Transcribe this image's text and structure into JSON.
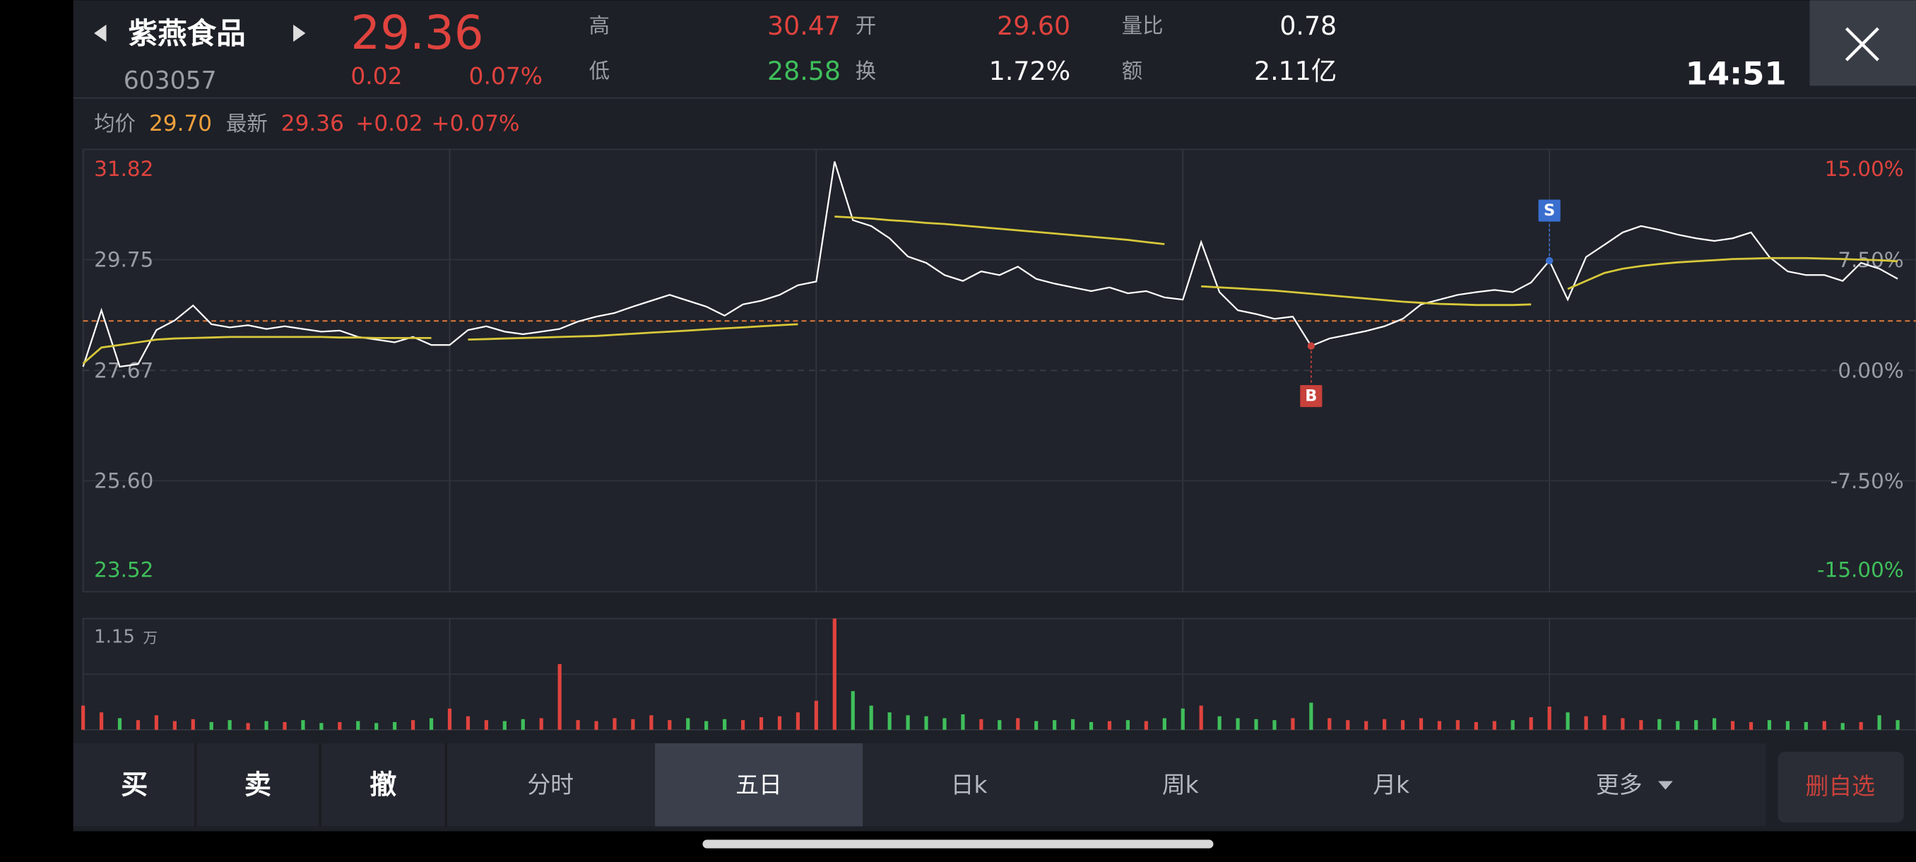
{
  "header": {
    "name": "紫燕食品",
    "code": "603057",
    "price": "29.36",
    "change": "0.02",
    "change_pct": "0.07%",
    "time": "14:51",
    "stats": [
      {
        "label": "高",
        "value": "30.47",
        "color": "#e0433e"
      },
      {
        "label": "开",
        "value": "29.60",
        "color": "#e0433e"
      },
      {
        "label": "量比",
        "value": "0.78",
        "color": "#ffffff"
      },
      {
        "label": "低",
        "value": "28.58",
        "color": "#3fbf5b"
      },
      {
        "label": "换",
        "value": "1.72%",
        "color": "#ffffff"
      },
      {
        "label": "额",
        "value": "2.11亿",
        "color": "#ffffff"
      }
    ]
  },
  "summary": {
    "avg_label": "均价",
    "avg": "29.70",
    "latest_label": "最新",
    "latest": "29.36",
    "change": "+0.02",
    "change_pct": "+0.07%"
  },
  "chart_data": {
    "type": "line",
    "x": [
      0,
      1,
      2,
      3,
      4,
      5,
      6,
      7,
      8,
      9,
      10,
      11,
      12,
      13,
      14,
      15,
      16,
      17,
      18,
      19,
      20,
      21,
      22,
      23,
      24,
      25,
      26,
      27,
      28,
      29,
      30,
      31,
      32,
      33,
      34,
      35,
      36,
      37,
      38,
      39,
      40,
      41,
      42,
      43,
      44,
      45,
      46,
      47,
      48,
      49,
      50,
      51,
      52,
      53,
      54,
      55,
      56,
      57,
      58,
      59,
      60,
      61,
      62,
      63,
      64,
      65,
      66,
      67,
      68,
      69,
      70,
      71,
      72,
      73,
      74,
      75,
      76,
      77,
      78,
      79,
      80,
      81,
      82,
      83,
      84,
      85,
      86,
      87,
      88,
      89,
      90,
      91,
      92,
      93,
      94,
      95,
      96,
      97,
      98,
      99
    ],
    "xlim": [
      0,
      100
    ],
    "day_separators": [
      20,
      40,
      60,
      80
    ],
    "series": [
      {
        "color": "#ffffff",
        "values": [
          27.74,
          28.8,
          27.74,
          27.79,
          28.43,
          28.61,
          28.89,
          28.54,
          28.48,
          28.52,
          28.45,
          28.5,
          28.45,
          28.4,
          28.42,
          28.3,
          28.25,
          28.2,
          28.3,
          28.15,
          28.15,
          28.43,
          28.5,
          28.4,
          28.35,
          28.4,
          28.45,
          28.59,
          28.68,
          28.75,
          28.87,
          28.98,
          29.09,
          28.98,
          28.87,
          28.7,
          28.91,
          28.98,
          29.09,
          29.27,
          29.34,
          31.59,
          30.49,
          30.38,
          30.15,
          29.81,
          29.69,
          29.46,
          29.35,
          29.53,
          29.46,
          29.62,
          29.39,
          29.3,
          29.23,
          29.16,
          29.23,
          29.12,
          29.16,
          29.04,
          29.0,
          30.08,
          29.14,
          28.8,
          28.73,
          28.64,
          28.68,
          28.13,
          28.27,
          28.34,
          28.41,
          28.5,
          28.64,
          28.91,
          29.0,
          29.09,
          29.14,
          29.18,
          29.14,
          29.32,
          29.73,
          29.0,
          29.8,
          30.03,
          30.26,
          30.38,
          30.31,
          30.22,
          30.15,
          30.1,
          30.15,
          30.26,
          29.8,
          29.53,
          29.46,
          29.46,
          29.35,
          29.69,
          29.58,
          29.39
        ]
      },
      {
        "color": "#d8c83a",
        "values": [
          27.8,
          28.1,
          28.15,
          28.2,
          28.25,
          28.27,
          28.28,
          28.29,
          28.3,
          28.3,
          28.3,
          28.3,
          28.3,
          28.3,
          28.29,
          28.29,
          28.28,
          28.28,
          28.28,
          28.28,
          null,
          28.25,
          28.26,
          28.27,
          28.28,
          28.29,
          28.3,
          28.31,
          28.32,
          28.34,
          28.36,
          28.38,
          28.4,
          28.42,
          28.44,
          28.46,
          28.48,
          28.5,
          28.52,
          28.54,
          null,
          30.56,
          30.54,
          30.52,
          30.49,
          30.47,
          30.44,
          30.42,
          30.39,
          30.36,
          30.33,
          30.3,
          30.27,
          30.24,
          30.21,
          30.18,
          30.15,
          30.12,
          30.08,
          30.04,
          null,
          29.25,
          29.23,
          29.21,
          29.19,
          29.17,
          29.14,
          29.11,
          29.08,
          29.05,
          29.02,
          28.99,
          28.96,
          28.94,
          28.92,
          28.91,
          28.9,
          28.9,
          28.9,
          28.91,
          null,
          29.2,
          29.35,
          29.5,
          29.58,
          29.63,
          29.67,
          29.7,
          29.72,
          29.74,
          29.76,
          29.77,
          29.78,
          29.78,
          29.78,
          29.77,
          29.76,
          29.75,
          29.74,
          29.72
        ]
      }
    ],
    "ylim": [
      23.52,
      31.82
    ],
    "yticks": [
      23.52,
      {
        "value": 25.6,
        "label": "25.60"
      },
      27.67,
      29.75,
      31.82
    ],
    "y2lim": [
      -15,
      15
    ],
    "y2ticks": [
      {
        "value": -15,
        "label": "-15.00%"
      },
      {
        "value": -7.5,
        "label": "-7.50%"
      },
      {
        "value": 0,
        "label": "0.00%"
      },
      {
        "value": 7.5,
        "label": "7.50%"
      },
      {
        "value": 15,
        "label": "15.00%"
      }
    ],
    "reference_line": {
      "value": 28.6,
      "color": "#e07a3a"
    },
    "markers": [
      {
        "label": "B",
        "x": 67,
        "value": 28.13,
        "color": "#c8413b"
      },
      {
        "label": "S",
        "x": 80,
        "value": 29.73,
        "color": "#3a6fd0"
      }
    ],
    "up_color": "#e0433e",
    "down_color": "#3fbf5b",
    "volume": {
      "ylim": [
        0,
        1.15
      ],
      "yticks": [
        1.15
      ],
      "unit": "万",
      "values": [
        0.25,
        0.18,
        0.12,
        0.1,
        0.15,
        0.09,
        0.11,
        0.08,
        0.1,
        0.07,
        0.09,
        0.08,
        0.1,
        0.07,
        0.08,
        0.09,
        0.07,
        0.08,
        0.1,
        0.12,
        0.22,
        0.14,
        0.1,
        0.09,
        0.11,
        0.12,
        0.68,
        0.1,
        0.09,
        0.12,
        0.11,
        0.15,
        0.1,
        0.12,
        0.09,
        0.11,
        0.1,
        0.13,
        0.14,
        0.18,
        0.3,
        1.15,
        0.4,
        0.25,
        0.18,
        0.15,
        0.14,
        0.12,
        0.16,
        0.11,
        0.1,
        0.12,
        0.09,
        0.1,
        0.11,
        0.08,
        0.09,
        0.1,
        0.09,
        0.12,
        0.22,
        0.25,
        0.14,
        0.12,
        0.11,
        0.1,
        0.12,
        0.28,
        0.12,
        0.1,
        0.09,
        0.11,
        0.1,
        0.12,
        0.09,
        0.1,
        0.08,
        0.09,
        0.1,
        0.13,
        0.24,
        0.18,
        0.14,
        0.15,
        0.12,
        0.1,
        0.11,
        0.09,
        0.1,
        0.12,
        0.09,
        0.08,
        0.1,
        0.09,
        0.08,
        0.09,
        0.07,
        0.08,
        0.15,
        0.1
      ]
    }
  },
  "toolbar": {
    "buttons": [
      "买",
      "卖",
      "撤",
      "分时",
      "五日",
      "日k",
      "周k",
      "月k",
      "更多"
    ],
    "selected": 4,
    "remove": "删自选"
  }
}
